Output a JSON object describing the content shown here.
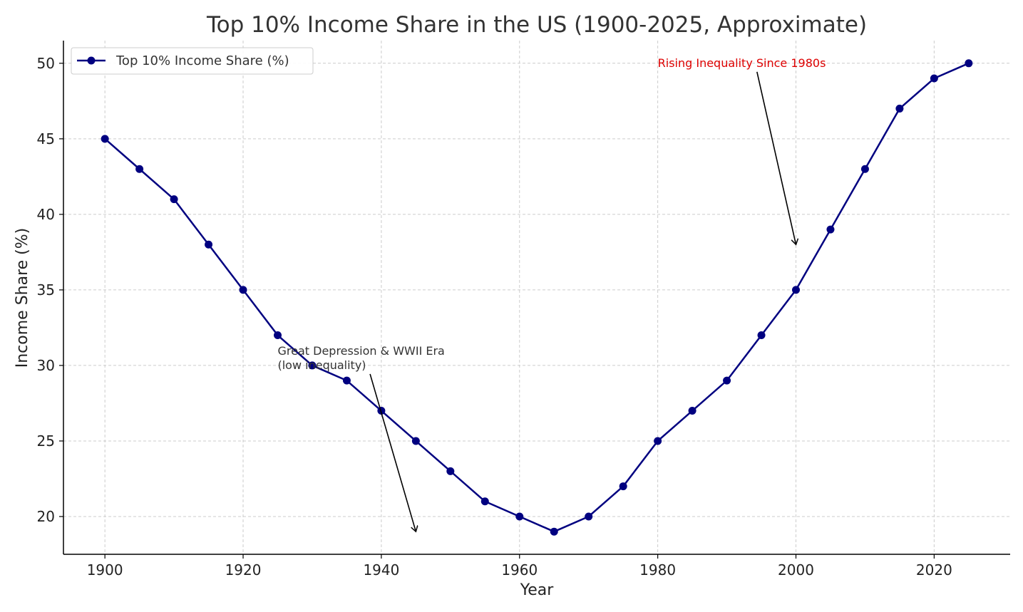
{
  "chart_data": {
    "type": "line",
    "title": "Top 10% Income Share in the US (1900-2025, Approximate)",
    "xlabel": "Year",
    "ylabel": "Income Share (%)",
    "xlim": [
      1894,
      2031
    ],
    "ylim": [
      17.5,
      51.5
    ],
    "x_ticks": [
      1900,
      1920,
      1940,
      1960,
      1980,
      2000,
      2020
    ],
    "y_ticks": [
      20,
      25,
      30,
      35,
      40,
      45,
      50
    ],
    "grid": true,
    "legend_position": "top-left",
    "series": [
      {
        "name": "Top 10% Income Share (%)",
        "color": "#000080",
        "marker": "circle",
        "x": [
          1900,
          1905,
          1910,
          1915,
          1920,
          1925,
          1930,
          1935,
          1940,
          1945,
          1950,
          1955,
          1960,
          1965,
          1970,
          1975,
          1980,
          1985,
          1990,
          1995,
          2000,
          2005,
          2010,
          2015,
          2020,
          2025
        ],
        "y": [
          45,
          43,
          41,
          38,
          35,
          32,
          30,
          29,
          27,
          25,
          23,
          21,
          20,
          19,
          20,
          22,
          25,
          27,
          29,
          32,
          35,
          39,
          43,
          47,
          49,
          50
        ]
      }
    ],
    "annotations": [
      {
        "lines": [
          "Great Depression & WWII Era",
          "(low inequality)"
        ],
        "text_at": [
          1925,
          30
        ],
        "arrow_to": [
          1945,
          19
        ],
        "color": "#333333"
      },
      {
        "lines": [
          "Rising Inequality Since 1980s"
        ],
        "text_at": [
          1980,
          50
        ],
        "arrow_to": [
          2000,
          38
        ],
        "color": "#dd0000"
      }
    ]
  }
}
